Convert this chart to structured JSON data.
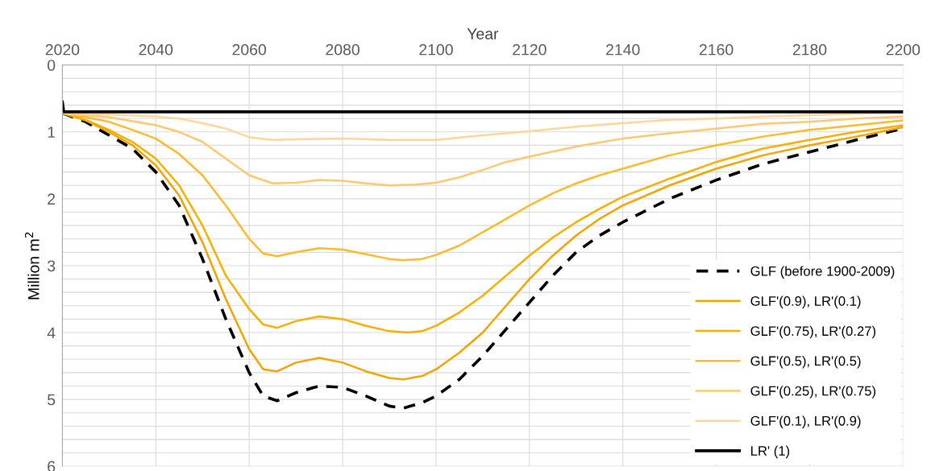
{
  "chart_data": {
    "type": "line",
    "xlabel": "Year",
    "ylabel": "Million m$^{2}$",
    "xlim": [
      2020,
      2200
    ],
    "xticks": [
      2020,
      2040,
      2060,
      2080,
      2100,
      2120,
      2140,
      2160,
      2180,
      2200
    ],
    "ylim": [
      6,
      0
    ],
    "yticks": [
      0,
      {
        "value": 0.2,
        "label": null
      },
      {
        "value": 0.4,
        "label": null
      },
      {
        "value": 0.6,
        "label": null
      },
      {
        "value": 0.8,
        "label": null
      },
      1,
      {
        "value": 1.2,
        "label": null
      },
      {
        "value": 1.4,
        "label": null
      },
      {
        "value": 1.6,
        "label": null
      },
      {
        "value": 1.8,
        "label": null
      },
      2,
      {
        "value": 2.2,
        "label": null
      },
      {
        "value": 2.4,
        "label": null
      },
      {
        "value": 2.6,
        "label": null
      },
      {
        "value": 2.8,
        "label": null
      },
      3,
      {
        "value": 3.2,
        "label": null
      },
      {
        "value": 3.4,
        "label": null
      },
      {
        "value": 3.6,
        "label": null
      },
      {
        "value": 3.8,
        "label": null
      },
      4,
      {
        "value": 4.2,
        "label": null
      },
      {
        "value": 4.4,
        "label": null
      },
      {
        "value": 4.6,
        "label": null
      },
      {
        "value": 4.8,
        "label": null
      },
      5,
      {
        "value": 5.2,
        "label": null
      },
      {
        "value": 5.4,
        "label": null
      },
      {
        "value": 5.6,
        "label": null
      },
      {
        "value": 5.8,
        "label": null
      },
      6
    ],
    "grid": true,
    "legend": "bottom right",
    "marker": "none",
    "series": [
      {
        "name": "GLF (before 1900-2009)",
        "color": "#000000",
        "line_style": "dashed",
        "x": [
          2020,
          2025,
          2030,
          2035,
          2040,
          2045,
          2050,
          2055,
          2060,
          2063,
          2066,
          2070,
          2075,
          2080,
          2085,
          2090,
          2093,
          2097,
          2100,
          2105,
          2110,
          2115,
          2120,
          2125,
          2130,
          2135,
          2140,
          2150,
          2160,
          2170,
          2180,
          2190,
          2200
        ],
        "values": [
          0.72,
          0.85,
          1.05,
          1.25,
          1.6,
          2.1,
          2.9,
          3.8,
          4.6,
          4.95,
          5.02,
          4.9,
          4.8,
          4.82,
          4.95,
          5.1,
          5.13,
          5.05,
          4.95,
          4.7,
          4.35,
          3.95,
          3.55,
          3.15,
          2.8,
          2.55,
          2.35,
          2.0,
          1.72,
          1.48,
          1.3,
          1.12,
          0.95
        ]
      },
      {
        "name": "GLF'(0.9), LR'(0.1)",
        "color": "#f2a500",
        "line_style": "solid",
        "x": [
          2020,
          2025,
          2030,
          2035,
          2040,
          2045,
          2050,
          2055,
          2060,
          2063,
          2066,
          2070,
          2075,
          2080,
          2085,
          2090,
          2093,
          2097,
          2100,
          2105,
          2110,
          2115,
          2120,
          2125,
          2130,
          2135,
          2140,
          2150,
          2160,
          2170,
          2180,
          2190,
          2200
        ],
        "values": [
          0.72,
          0.83,
          1.0,
          1.2,
          1.5,
          1.95,
          2.65,
          3.5,
          4.25,
          4.55,
          4.58,
          4.45,
          4.38,
          4.45,
          4.58,
          4.68,
          4.7,
          4.65,
          4.55,
          4.3,
          4.0,
          3.6,
          3.2,
          2.85,
          2.55,
          2.3,
          2.1,
          1.8,
          1.55,
          1.35,
          1.2,
          1.07,
          0.93
        ]
      },
      {
        "name": "GLF'(0.75), LR'(0.27)",
        "color": "#f7b000",
        "line_style": "solid",
        "x": [
          2020,
          2025,
          2030,
          2035,
          2040,
          2045,
          2050,
          2055,
          2060,
          2063,
          2066,
          2070,
          2075,
          2080,
          2085,
          2090,
          2094,
          2097,
          2100,
          2105,
          2110,
          2115,
          2120,
          2125,
          2130,
          2135,
          2140,
          2150,
          2160,
          2170,
          2180,
          2190,
          2200
        ],
        "values": [
          0.72,
          0.82,
          0.97,
          1.15,
          1.4,
          1.8,
          2.4,
          3.15,
          3.65,
          3.88,
          3.93,
          3.83,
          3.76,
          3.8,
          3.9,
          3.98,
          4.0,
          3.98,
          3.9,
          3.7,
          3.45,
          3.15,
          2.85,
          2.58,
          2.35,
          2.15,
          1.97,
          1.7,
          1.45,
          1.25,
          1.12,
          1.0,
          0.9
        ]
      },
      {
        "name": "GLF'(0.5), LR'(0.5)",
        "color": "#fbbb2a",
        "line_style": "solid",
        "x": [
          2020,
          2025,
          2030,
          2035,
          2040,
          2045,
          2050,
          2055,
          2060,
          2063,
          2066,
          2070,
          2075,
          2080,
          2085,
          2090,
          2093,
          2097,
          2100,
          2105,
          2110,
          2115,
          2120,
          2125,
          2130,
          2135,
          2140,
          2150,
          2160,
          2170,
          2180,
          2190,
          2200
        ],
        "values": [
          0.72,
          0.78,
          0.85,
          0.97,
          1.1,
          1.33,
          1.65,
          2.1,
          2.6,
          2.82,
          2.86,
          2.8,
          2.74,
          2.76,
          2.83,
          2.9,
          2.92,
          2.9,
          2.84,
          2.7,
          2.5,
          2.3,
          2.1,
          1.92,
          1.77,
          1.65,
          1.55,
          1.35,
          1.2,
          1.07,
          0.97,
          0.9,
          0.83
        ]
      },
      {
        "name": "GLF'(0.25), LR'(0.75)",
        "color": "#fcc870",
        "line_style": "solid",
        "x": [
          2020,
          2030,
          2040,
          2045,
          2050,
          2055,
          2060,
          2065,
          2070,
          2075,
          2080,
          2085,
          2090,
          2095,
          2100,
          2105,
          2110,
          2115,
          2120,
          2130,
          2140,
          2150,
          2160,
          2170,
          2180,
          2190,
          2200
        ],
        "values": [
          0.72,
          0.78,
          0.9,
          1.0,
          1.15,
          1.4,
          1.65,
          1.77,
          1.76,
          1.72,
          1.73,
          1.77,
          1.8,
          1.79,
          1.76,
          1.68,
          1.57,
          1.45,
          1.37,
          1.22,
          1.1,
          1.02,
          0.95,
          0.88,
          0.85,
          0.8,
          0.77
        ]
      },
      {
        "name": "GLF'(0.1), LR'(0.9)",
        "color": "#fdd79a",
        "line_style": "solid",
        "x": [
          2020,
          2030,
          2040,
          2045,
          2050,
          2055,
          2060,
          2065,
          2070,
          2080,
          2090,
          2100,
          2110,
          2120,
          2130,
          2140,
          2150,
          2160,
          2170,
          2180,
          2190,
          2200
        ],
        "values": [
          0.72,
          0.74,
          0.77,
          0.8,
          0.87,
          0.95,
          1.08,
          1.12,
          1.11,
          1.1,
          1.12,
          1.12,
          1.05,
          0.99,
          0.92,
          0.87,
          0.82,
          0.8,
          0.77,
          0.75,
          0.73,
          0.72
        ]
      },
      {
        "name": "LR' (1)",
        "color": "#000000",
        "line_style": "solid",
        "x": [
          2020,
          2020.3,
          2200
        ],
        "values": [
          0.55,
          0.7,
          0.7
        ]
      }
    ]
  }
}
